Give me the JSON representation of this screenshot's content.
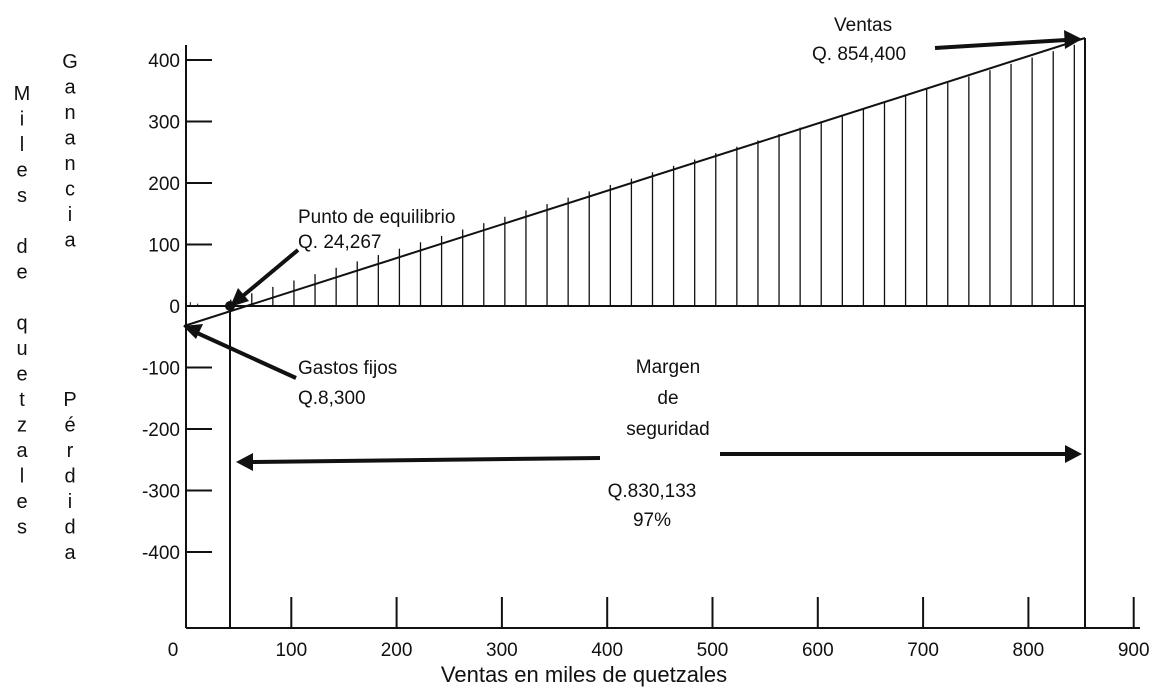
{
  "chart_data": {
    "type": "line",
    "title": "",
    "xlabel": "Ventas en miles de quetzales",
    "ylabel_left": "Miles de quetzales",
    "ylabel_right_top": "Ganancia",
    "ylabel_right_bottom": "Pérdida",
    "xlim": [
      0,
      900
    ],
    "ylim": [
      -400,
      400
    ],
    "x_ticks": [
      "0",
      "100",
      "200",
      "300",
      "400",
      "500",
      "600",
      "700",
      "800",
      "900"
    ],
    "y_ticks": [
      "400",
      "300",
      "200",
      "100",
      "0",
      "-100",
      "-200",
      "-300",
      "-400"
    ],
    "grid": false,
    "series": [
      {
        "x": [
          0,
          24.267,
          854.4
        ],
        "y": [
          -8.3,
          0,
          430
        ]
      }
    ],
    "points": [
      {
        "label": "Punto de equilibrio",
        "value": "Q. 24,267",
        "x": 24.267,
        "y": 0
      },
      {
        "label": "Gastos fijos",
        "value": "Q.8,300",
        "x": 0,
        "y": -8.3
      },
      {
        "label": "Ventas",
        "value": "Q. 854,400",
        "x": 854.4,
        "y": 430
      }
    ],
    "annotations": {
      "breakeven_label": "Punto de equilibrio",
      "breakeven_value": "Q. 24,267",
      "fixed_costs_label": "Gastos fijos",
      "fixed_costs_value": "Q.8,300",
      "sales_label": "Ventas",
      "sales_value": "Q. 854,400",
      "margin_line1": "Margen",
      "margin_line2": "de",
      "margin_line3": "seguridad",
      "margin_value": "Q.830,133",
      "margin_percent": "97%"
    }
  }
}
